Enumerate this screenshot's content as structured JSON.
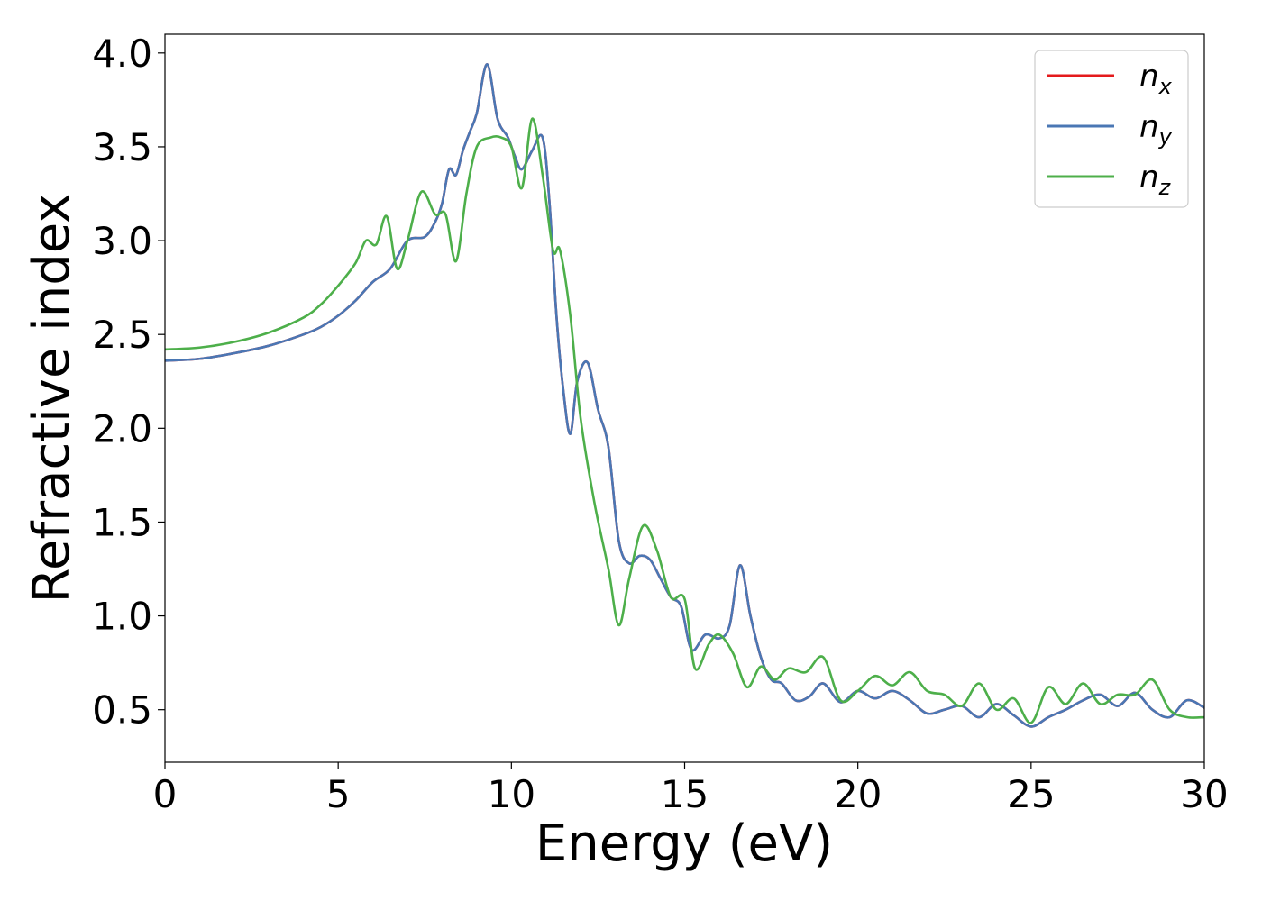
{
  "chart_data": {
    "type": "line",
    "title": "",
    "xlabel": "Energy (eV)",
    "ylabel": "Refractive index",
    "xlim": [
      0,
      30
    ],
    "ylim": [
      0.22,
      4.1
    ],
    "xticks": [
      "0",
      "5",
      "10",
      "15",
      "20",
      "25",
      "30"
    ],
    "yticks": [
      "0.5",
      "1.0",
      "1.5",
      "2.0",
      "2.5",
      "3.0",
      "3.5",
      "4.0"
    ],
    "grid": false,
    "legend_position": "top-right",
    "series": [
      {
        "name": "n_x",
        "legend_base": "n",
        "legend_sub": "x",
        "color": "#e41a1c",
        "x": [
          0,
          1,
          2,
          3,
          4,
          4.5,
          5,
          5.5,
          6,
          6.5,
          7,
          7.5,
          7.8,
          8,
          8.2,
          8.4,
          8.6,
          8.8,
          9,
          9.3,
          9.6,
          9.9,
          10.1,
          10.3,
          10.6,
          10.9,
          11.1,
          11.3,
          11.5,
          11.7,
          11.9,
          12.2,
          12.5,
          12.8,
          13.1,
          13.4,
          13.7,
          14,
          14.3,
          14.6,
          14.9,
          15.2,
          15.6,
          16,
          16.3,
          16.6,
          16.9,
          17.2,
          17.5,
          17.8,
          18.2,
          18.6,
          19,
          19.5,
          20,
          20.5,
          21,
          21.5,
          22,
          22.5,
          23,
          23.5,
          24,
          24.5,
          25,
          25.5,
          26,
          26.5,
          27,
          27.5,
          28,
          28.5,
          29,
          29.5,
          30
        ],
        "values": [
          2.36,
          2.37,
          2.4,
          2.44,
          2.5,
          2.54,
          2.6,
          2.68,
          2.78,
          2.85,
          3.0,
          3.02,
          3.1,
          3.2,
          3.38,
          3.35,
          3.48,
          3.58,
          3.68,
          3.94,
          3.65,
          3.55,
          3.45,
          3.38,
          3.48,
          3.55,
          3.2,
          2.6,
          2.2,
          1.97,
          2.25,
          2.35,
          2.1,
          1.9,
          1.4,
          1.28,
          1.32,
          1.3,
          1.2,
          1.1,
          1.05,
          0.82,
          0.9,
          0.88,
          0.95,
          1.27,
          1.0,
          0.78,
          0.66,
          0.64,
          0.55,
          0.57,
          0.64,
          0.54,
          0.6,
          0.56,
          0.6,
          0.55,
          0.48,
          0.5,
          0.52,
          0.46,
          0.53,
          0.47,
          0.41,
          0.46,
          0.5,
          0.55,
          0.58,
          0.52,
          0.59,
          0.5,
          0.46,
          0.55,
          0.51
        ]
      },
      {
        "name": "n_y",
        "legend_base": "n",
        "legend_sub": "y",
        "color": "#4a77b4",
        "x": [
          0,
          1,
          2,
          3,
          4,
          4.5,
          5,
          5.5,
          6,
          6.5,
          7,
          7.5,
          7.8,
          8,
          8.2,
          8.4,
          8.6,
          8.8,
          9,
          9.3,
          9.6,
          9.9,
          10.1,
          10.3,
          10.6,
          10.9,
          11.1,
          11.3,
          11.5,
          11.7,
          11.9,
          12.2,
          12.5,
          12.8,
          13.1,
          13.4,
          13.7,
          14,
          14.3,
          14.6,
          14.9,
          15.2,
          15.6,
          16,
          16.3,
          16.6,
          16.9,
          17.2,
          17.5,
          17.8,
          18.2,
          18.6,
          19,
          19.5,
          20,
          20.5,
          21,
          21.5,
          22,
          22.5,
          23,
          23.5,
          24,
          24.5,
          25,
          25.5,
          26,
          26.5,
          27,
          27.5,
          28,
          28.5,
          29,
          29.5,
          30
        ],
        "values": [
          2.36,
          2.37,
          2.4,
          2.44,
          2.5,
          2.54,
          2.6,
          2.68,
          2.78,
          2.85,
          3.0,
          3.02,
          3.1,
          3.2,
          3.38,
          3.35,
          3.48,
          3.58,
          3.68,
          3.94,
          3.65,
          3.55,
          3.45,
          3.38,
          3.48,
          3.55,
          3.2,
          2.6,
          2.2,
          1.97,
          2.25,
          2.35,
          2.1,
          1.9,
          1.4,
          1.28,
          1.32,
          1.3,
          1.2,
          1.1,
          1.05,
          0.82,
          0.9,
          0.88,
          0.95,
          1.27,
          1.0,
          0.78,
          0.66,
          0.64,
          0.55,
          0.57,
          0.64,
          0.54,
          0.6,
          0.56,
          0.6,
          0.55,
          0.48,
          0.5,
          0.52,
          0.46,
          0.53,
          0.47,
          0.41,
          0.46,
          0.5,
          0.55,
          0.58,
          0.52,
          0.59,
          0.5,
          0.46,
          0.55,
          0.51
        ]
      },
      {
        "name": "n_z",
        "legend_base": "n",
        "legend_sub": "z",
        "color": "#4daf4a",
        "x": [
          0,
          1,
          2,
          3,
          4,
          4.5,
          5,
          5.5,
          5.8,
          6.1,
          6.4,
          6.7,
          7,
          7.4,
          7.8,
          8.1,
          8.4,
          8.7,
          9,
          9.4,
          9.7,
          10,
          10.3,
          10.6,
          10.9,
          11.2,
          11.4,
          11.7,
          12,
          12.4,
          12.8,
          13.1,
          13.4,
          13.8,
          14.2,
          14.6,
          15,
          15.3,
          15.7,
          16,
          16.4,
          16.8,
          17.2,
          17.6,
          18,
          18.5,
          19,
          19.5,
          20,
          20.5,
          21,
          21.5,
          22,
          22.5,
          23,
          23.5,
          24,
          24.5,
          25,
          25.5,
          26,
          26.5,
          27,
          27.5,
          28,
          28.5,
          29,
          29.5,
          30
        ],
        "values": [
          2.42,
          2.43,
          2.46,
          2.51,
          2.59,
          2.66,
          2.76,
          2.88,
          3.0,
          2.98,
          3.13,
          2.85,
          3.0,
          3.26,
          3.14,
          3.14,
          2.89,
          3.25,
          3.5,
          3.55,
          3.55,
          3.5,
          3.28,
          3.65,
          3.35,
          2.95,
          2.95,
          2.6,
          2.05,
          1.6,
          1.25,
          0.95,
          1.2,
          1.48,
          1.35,
          1.1,
          1.09,
          0.72,
          0.85,
          0.9,
          0.8,
          0.62,
          0.73,
          0.66,
          0.72,
          0.7,
          0.78,
          0.55,
          0.6,
          0.68,
          0.63,
          0.7,
          0.6,
          0.58,
          0.52,
          0.64,
          0.5,
          0.56,
          0.43,
          0.62,
          0.53,
          0.64,
          0.53,
          0.58,
          0.58,
          0.66,
          0.5,
          0.46,
          0.46
        ]
      }
    ]
  }
}
